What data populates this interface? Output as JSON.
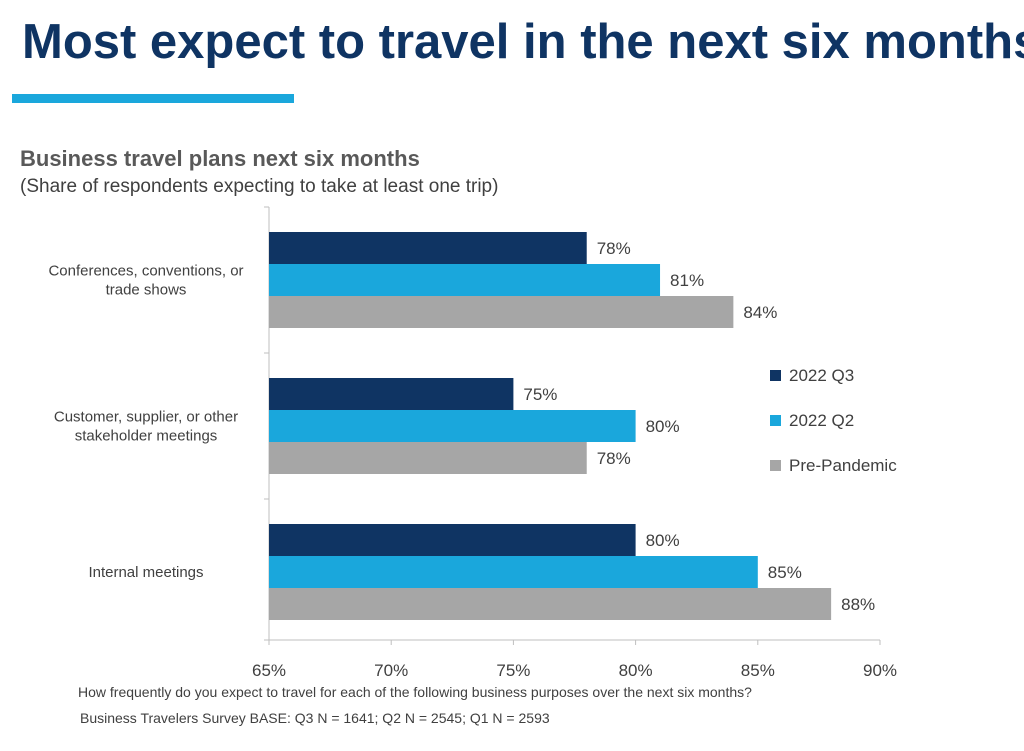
{
  "headline": "Most expect to travel in the next six months",
  "footnotes": {
    "question": "How frequently do you expect to travel for each of the following business purposes over the next six months?",
    "base": "Business Travelers Survey BASE: Q3 N = 1641; Q2 N = 2545; Q1 N = 2593"
  },
  "chart_data": {
    "type": "bar",
    "orientation": "horizontal",
    "title": "Business travel plans next six months",
    "subtitle": "(Share of respondents expecting to take at least one trip)",
    "categories": [
      [
        "Conferences, conventions, or",
        "trade shows"
      ],
      [
        "Customer, supplier, or other",
        "stakeholder meetings"
      ],
      [
        "Internal meetings"
      ]
    ],
    "series": [
      {
        "name": "2022 Q3",
        "color": "#0f3463",
        "values": [
          78,
          75,
          80
        ]
      },
      {
        "name": "2022 Q2",
        "color": "#1aa7dc",
        "values": [
          81,
          80,
          85
        ]
      },
      {
        "name": "Pre-Pandemic",
        "color": "#a6a6a6",
        "values": [
          84,
          78,
          88
        ]
      }
    ],
    "data_labels": [
      [
        "78%",
        "75%",
        "80%"
      ],
      [
        "81%",
        "80%",
        "85%"
      ],
      [
        "84%",
        "78%",
        "88%"
      ]
    ],
    "xlim": [
      65,
      90
    ],
    "ticks": [
      65,
      70,
      75,
      80,
      85,
      90
    ],
    "tick_labels": [
      "65%",
      "70%",
      "75%",
      "80%",
      "85%",
      "90%"
    ],
    "grid": false,
    "legend_position": "right"
  }
}
